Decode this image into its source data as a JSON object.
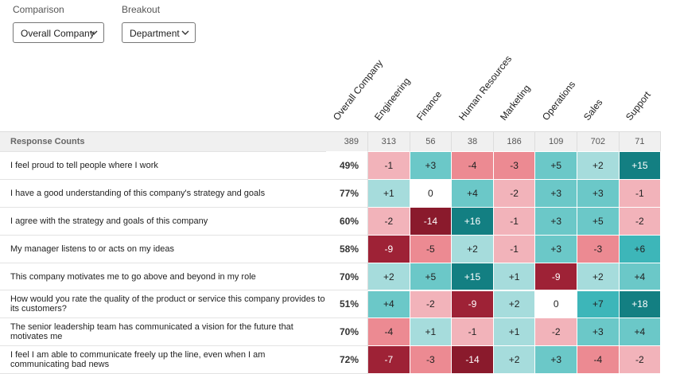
{
  "comparison": {
    "label": "Comparison",
    "value": "Overall Company"
  },
  "breakout": {
    "label": "Breakout",
    "value": "Department"
  },
  "table": {
    "columns": [
      "Overall Company",
      "Engineering",
      "Finance",
      "Human Resources",
      "Marketing",
      "Operations",
      "Sales",
      "Support"
    ],
    "response_counts": {
      "label": "Response Counts",
      "values": [
        "389",
        "313",
        "56",
        "38",
        "186",
        "109",
        "702",
        "71"
      ]
    },
    "rows": [
      {
        "question": "I feel proud to tell people where I work",
        "overall": "49%",
        "cells": [
          "-1",
          "+3",
          "-4",
          "-3",
          "+5",
          "+2",
          "+15"
        ]
      },
      {
        "question": "I have a good understanding of this company's strategy and goals",
        "overall": "77%",
        "cells": [
          "+1",
          "0",
          "+4",
          "-2",
          "+3",
          "+3",
          "-1"
        ]
      },
      {
        "question": "I agree with the strategy and goals of this company",
        "overall": "60%",
        "cells": [
          "-2",
          "-14",
          "+16",
          "-1",
          "+3",
          "+5",
          "-2"
        ]
      },
      {
        "question": "My manager listens to or acts on my ideas",
        "overall": "58%",
        "cells": [
          "-9",
          "-5",
          "+2",
          "-1",
          "+3",
          "-3",
          "+6"
        ]
      },
      {
        "question": "This company motivates me to go above and beyond in my role",
        "overall": "70%",
        "cells": [
          "+2",
          "+5",
          "+15",
          "+1",
          "-9",
          "+2",
          "+4"
        ]
      },
      {
        "question": "How would you rate the quality of the product or service this company provides to its customers?",
        "overall": "51%",
        "cells": [
          "+4",
          "-2",
          "-9",
          "+2",
          "0",
          "+7",
          "+18"
        ]
      },
      {
        "question": "The senior leadership team has communicated a vision for the future that motivates me",
        "overall": "70%",
        "cells": [
          "-4",
          "+1",
          "-1",
          "+1",
          "-2",
          "+3",
          "+4"
        ]
      },
      {
        "question": "I feel I am able to communicate freely up the line, even when I am communicating bad news",
        "overall": "72%",
        "cells": [
          "-7",
          "-3",
          "-14",
          "+2",
          "+3",
          "-4",
          "-2"
        ]
      }
    ]
  }
}
